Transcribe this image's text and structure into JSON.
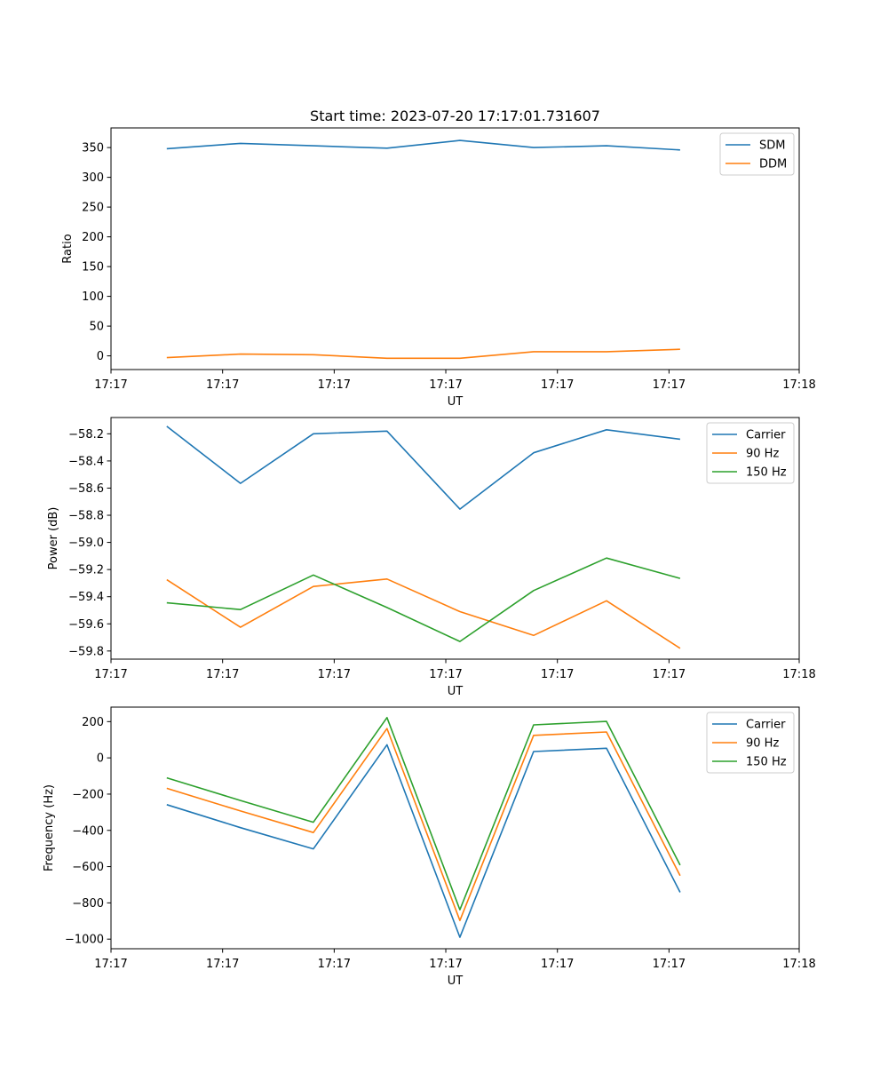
{
  "chart_data": [
    {
      "type": "line",
      "title": "Start time: 2023-07-20 17:17:01.731607",
      "xlabel": "UT",
      "ylabel": "Ratio",
      "xlim": [
        0,
        9.25
      ],
      "xticks": [
        0,
        1.5,
        3,
        4.5,
        6,
        7.5,
        9.25
      ],
      "xtick_labels": [
        "17:17",
        "17:17",
        "17:17",
        "17:17",
        "17:17",
        "17:17",
        "17:18"
      ],
      "ylim": [
        -23,
        383
      ],
      "yticks": [
        0,
        50,
        100,
        150,
        200,
        250,
        300,
        350
      ],
      "ytick_labels": [
        "0",
        "50",
        "100",
        "150",
        "200",
        "250",
        "300",
        "350"
      ],
      "x": [
        0.75,
        1.74,
        2.72,
        3.71,
        4.69,
        5.68,
        6.66,
        7.65
      ],
      "legend": "top-right",
      "series": [
        {
          "name": "SDM",
          "color": "#1f77b4",
          "values": [
            348,
            357,
            353,
            349,
            362,
            350,
            353,
            346
          ]
        },
        {
          "name": "DDM",
          "color": "#ff7f0e",
          "values": [
            -3,
            3,
            2,
            -4,
            -4,
            7,
            7,
            11
          ]
        }
      ]
    },
    {
      "type": "line",
      "title": "",
      "xlabel": "UT",
      "ylabel": "Power (dB)",
      "xlim": [
        0,
        9.25
      ],
      "xticks": [
        0,
        1.5,
        3,
        4.5,
        6,
        7.5,
        9.25
      ],
      "xtick_labels": [
        "17:17",
        "17:17",
        "17:17",
        "17:17",
        "17:17",
        "17:17",
        "17:18"
      ],
      "ylim": [
        -59.86,
        -58.08
      ],
      "yticks": [
        -59.8,
        -59.6,
        -59.4,
        -59.2,
        -59.0,
        -58.8,
        -58.6,
        -58.4,
        -58.2
      ],
      "ytick_labels": [
        "−59.8",
        "−59.6",
        "−59.4",
        "−59.2",
        "−59.0",
        "−58.8",
        "−58.6",
        "−58.4",
        "−58.2"
      ],
      "x": [
        0.75,
        1.74,
        2.72,
        3.71,
        4.69,
        5.68,
        6.66,
        7.65
      ],
      "legend": "top-right",
      "series": [
        {
          "name": "Carrier",
          "color": "#1f77b4",
          "values": [
            -58.145,
            -58.565,
            -58.2,
            -58.18,
            -58.755,
            -58.34,
            -58.17,
            -58.24
          ]
        },
        {
          "name": "90 Hz",
          "color": "#ff7f0e",
          "values": [
            -59.275,
            -59.625,
            -59.325,
            -59.27,
            -59.51,
            -59.685,
            -59.43,
            -59.78
          ]
        },
        {
          "name": "150 Hz",
          "color": "#2ca02c",
          "values": [
            -59.445,
            -59.495,
            -59.24,
            -59.48,
            -59.73,
            -59.355,
            -59.115,
            -59.265
          ]
        }
      ]
    },
    {
      "type": "line",
      "title": "",
      "xlabel": "UT",
      "ylabel": "Frequency (Hz)",
      "xlim": [
        0,
        9.25
      ],
      "xticks": [
        0,
        1.5,
        3,
        4.5,
        6,
        7.5,
        9.25
      ],
      "xtick_labels": [
        "17:17",
        "17:17",
        "17:17",
        "17:17",
        "17:17",
        "17:17",
        "17:18"
      ],
      "ylim": [
        -1053,
        280
      ],
      "yticks": [
        -1000,
        -800,
        -600,
        -400,
        -200,
        0,
        200
      ],
      "ytick_labels": [
        "−1000",
        "−800",
        "−600",
        "−400",
        "−200",
        "0",
        "200"
      ],
      "x": [
        0.75,
        1.74,
        2.72,
        3.71,
        4.69,
        5.68,
        6.66,
        7.65
      ],
      "legend": "top-right",
      "series": [
        {
          "name": "Carrier",
          "color": "#1f77b4",
          "values": [
            -258,
            -385,
            -502,
            72,
            -990,
            35,
            53,
            -742
          ]
        },
        {
          "name": "90 Hz",
          "color": "#ff7f0e",
          "values": [
            -168,
            -293,
            -412,
            162,
            -897,
            124,
            143,
            -650
          ]
        },
        {
          "name": "150 Hz",
          "color": "#2ca02c",
          "values": [
            -110,
            -235,
            -355,
            222,
            -838,
            182,
            201,
            -592
          ]
        }
      ]
    }
  ]
}
